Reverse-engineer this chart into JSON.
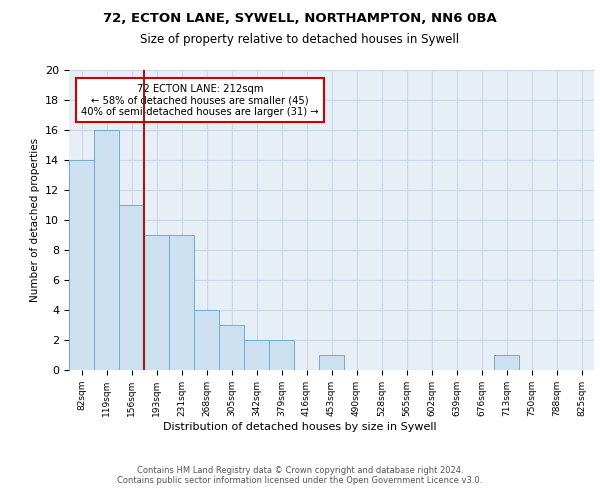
{
  "title1": "72, ECTON LANE, SYWELL, NORTHAMPTON, NN6 0BA",
  "title2": "Size of property relative to detached houses in Sywell",
  "xlabel": "Distribution of detached houses by size in Sywell",
  "ylabel": "Number of detached properties",
  "categories": [
    "82sqm",
    "119sqm",
    "156sqm",
    "193sqm",
    "231sqm",
    "268sqm",
    "305sqm",
    "342sqm",
    "379sqm",
    "416sqm",
    "453sqm",
    "490sqm",
    "528sqm",
    "565sqm",
    "602sqm",
    "639sqm",
    "676sqm",
    "713sqm",
    "750sqm",
    "788sqm",
    "825sqm"
  ],
  "values": [
    14,
    16,
    11,
    9,
    9,
    4,
    3,
    2,
    2,
    0,
    1,
    0,
    0,
    0,
    0,
    0,
    0,
    1,
    0,
    0,
    0
  ],
  "bar_color": "#cce0f0",
  "bar_edge_color": "#6aafd6",
  "vline_x": 2.5,
  "vline_color": "#9b1a1a",
  "annotation_text": "72 ECTON LANE: 212sqm\n← 58% of detached houses are smaller (45)\n40% of semi-detached houses are larger (31) →",
  "annotation_box_color": "white",
  "annotation_box_edge_color": "#cc0000",
  "ylim": [
    0,
    20
  ],
  "yticks": [
    0,
    2,
    4,
    6,
    8,
    10,
    12,
    14,
    16,
    18,
    20
  ],
  "grid_color": "#c8d8e8",
  "bg_color": "#e8eef5",
  "footer": "Contains HM Land Registry data © Crown copyright and database right 2024.\nContains public sector information licensed under the Open Government Licence v3.0."
}
